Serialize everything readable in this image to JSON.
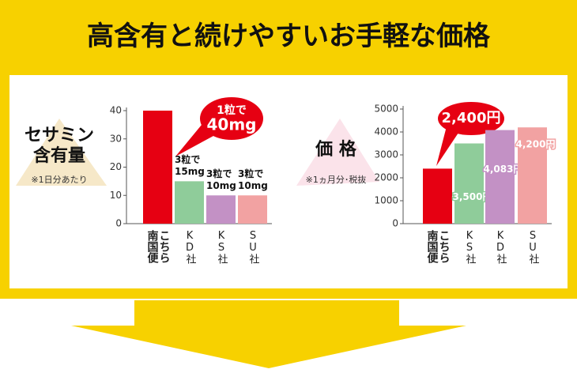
{
  "header": {
    "title": "高含有と続けやすいお手軽な価格"
  },
  "chart_data": [
    {
      "type": "bar",
      "label": [
        "セサミン",
        "含有量"
      ],
      "note": "※1日分あたり",
      "categories": [
        "こちら南国便",
        "KD社",
        "KS社",
        "SU社"
      ],
      "values": [
        40,
        15,
        10,
        10
      ],
      "value_labels": [
        [
          "1粒で",
          "40mg"
        ],
        [
          "3粒で",
          "15mg"
        ],
        [
          "3粒で",
          "10mg"
        ],
        [
          "3粒で",
          "10mg"
        ]
      ],
      "colors": [
        "#e60012",
        "#8fcc9a",
        "#c391c5",
        "#f2a2a2"
      ],
      "ylim": [
        0,
        40
      ],
      "yticks": [
        0,
        10,
        20,
        30,
        40
      ]
    },
    {
      "type": "bar",
      "label": [
        "価 格"
      ],
      "note": "※1ヵ月分･税抜",
      "categories": [
        "こちら南国便",
        "KS社",
        "KD社",
        "SU社"
      ],
      "values": [
        2400,
        3500,
        4083,
        4200
      ],
      "value_labels": [
        "2,400円",
        "3,500円",
        "4,083円",
        "4,200円"
      ],
      "colors": [
        "#e60012",
        "#8fcc9a",
        "#c391c5",
        "#f2a2a2"
      ],
      "ylim": [
        0,
        5000
      ],
      "yticks": [
        0,
        1000,
        2000,
        3000,
        4000,
        5000
      ]
    }
  ]
}
